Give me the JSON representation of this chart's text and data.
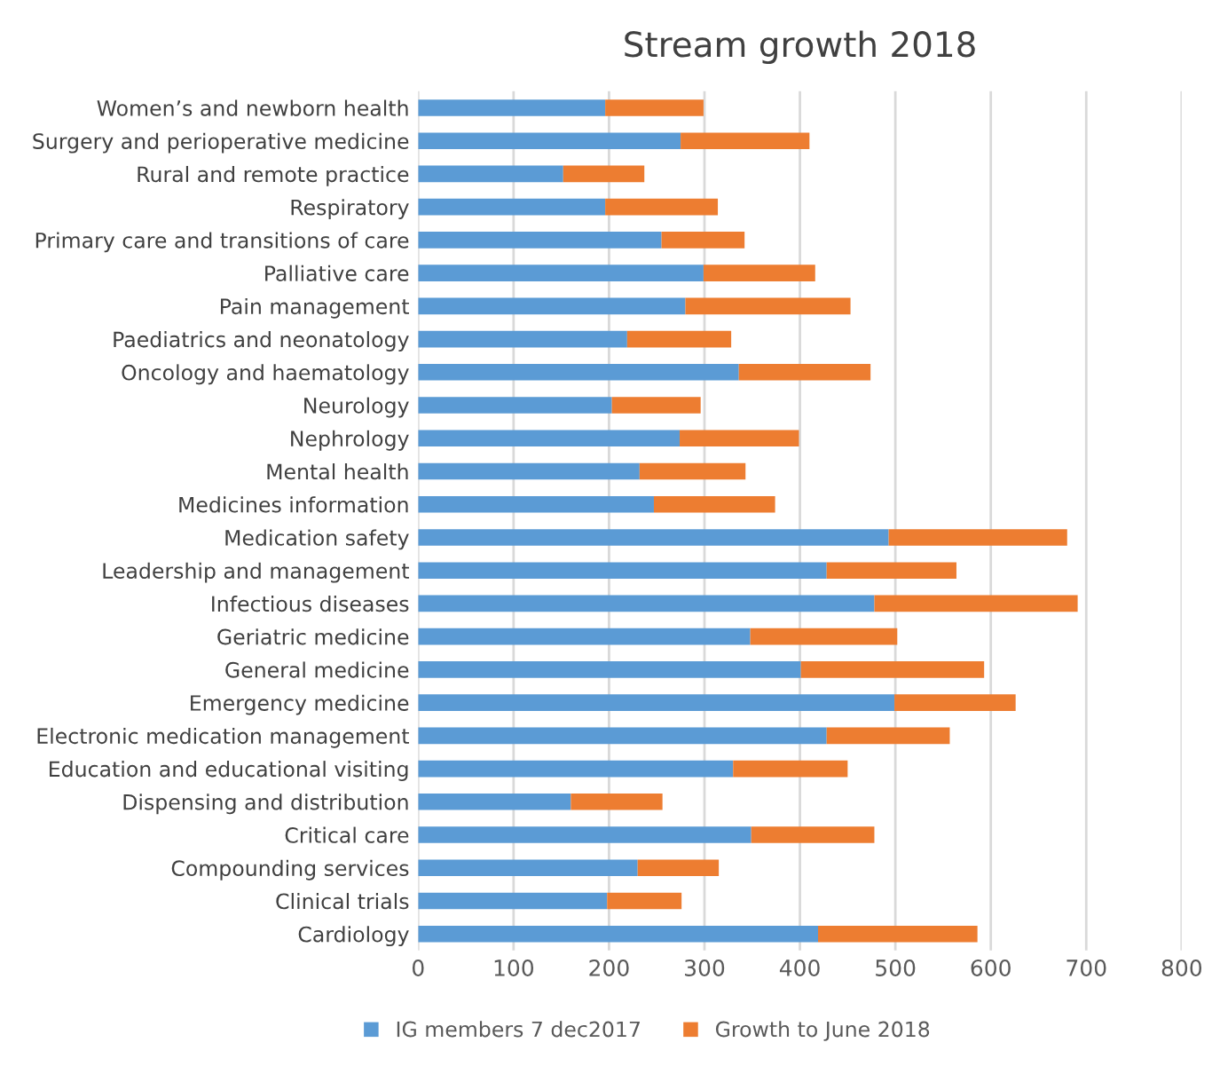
{
  "chart_data": {
    "type": "bar",
    "orientation": "horizontal",
    "stacked": true,
    "title": "Stream growth 2018",
    "categories": [
      "Women’s and newborn health",
      "Surgery and perioperative medicine",
      "Rural and remote practice",
      "Respiratory",
      "Primary care and transitions of care",
      "Palliative care",
      "Pain management",
      "Paediatrics and neonatology",
      "Oncology and haematology",
      "Neurology",
      "Nephrology",
      "Mental health",
      "Medicines information",
      "Medication safety",
      "Leadership and management",
      "Infectious diseases",
      "Geriatric medicine",
      "General medicine",
      "Emergency medicine",
      "Electronic medication management",
      "Education and educational visiting",
      "Dispensing and distribution",
      "Critical care",
      "Compounding services",
      "Clinical trials",
      "Cardiology"
    ],
    "series": [
      {
        "name": "IG members 7 dec2017",
        "color": "#5b9bd5",
        "values": [
          196,
          275,
          152,
          196,
          255,
          299,
          280,
          219,
          336,
          203,
          274,
          232,
          247,
          493,
          428,
          478,
          348,
          401,
          499,
          428,
          330,
          160,
          349,
          230,
          198,
          419
        ]
      },
      {
        "name": "Growth to June 2018",
        "color": "#ed7d31",
        "values": [
          103,
          135,
          85,
          118,
          87,
          117,
          173,
          109,
          138,
          93,
          125,
          111,
          127,
          187,
          136,
          213,
          154,
          192,
          127,
          129,
          120,
          96,
          129,
          85,
          78,
          167
        ]
      }
    ],
    "xlim": [
      0,
      800
    ],
    "xticks": [
      0,
      100,
      200,
      300,
      400,
      500,
      600,
      700,
      800
    ],
    "grid": "x",
    "legend": "bottom"
  }
}
